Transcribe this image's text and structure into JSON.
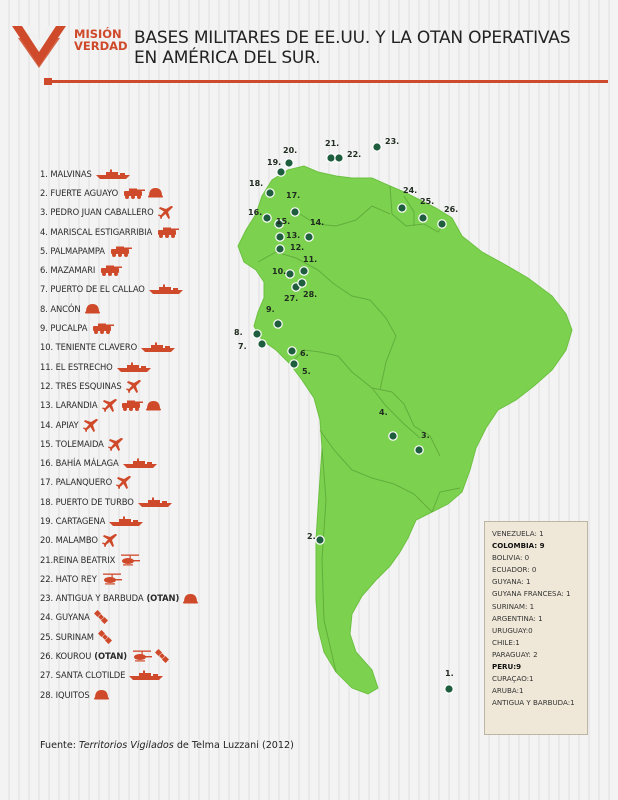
{
  "brand": {
    "line1": "MISIÓN",
    "line2": "VERDAD"
  },
  "title": {
    "line1": "BASES MILITARES DE EE.UU. Y LA OTAN OPERATIVAS",
    "line2": "EN AMÉRICA DEL SUR."
  },
  "colors": {
    "accent": "#cf4a2a",
    "land": "#7cd24f",
    "borders": "#5faa3a",
    "marker": "#1e5e3e",
    "panel": "#efe8d8"
  },
  "legend": [
    {
      "text": "1. MALVINAS",
      "icons": [
        "ship-icon"
      ]
    },
    {
      "text": "2. FUERTE AGUAYO",
      "icons": [
        "armored-vehicle-icon",
        "helmet-icon"
      ]
    },
    {
      "text": "3. PEDRO JUAN CABALLERO",
      "icons": [
        "plane-icon"
      ]
    },
    {
      "text": "4. MARISCAL ESTIGARRIBIA",
      "icons": [
        "armored-vehicle-icon"
      ]
    },
    {
      "text": "5. PALMAPAMPA",
      "icons": [
        "armored-vehicle-icon"
      ]
    },
    {
      "text": "6. MAZAMARI",
      "icons": [
        "armored-vehicle-icon"
      ]
    },
    {
      "text": "7. PUERTO DE EL CALLAO",
      "icons": [
        "ship-icon"
      ]
    },
    {
      "text": "8. ANCÓN",
      "icons": [
        "helmet-icon"
      ]
    },
    {
      "text": "9. PUCALPA",
      "icons": [
        "armored-vehicle-icon"
      ]
    },
    {
      "text": "10. TENIENTE CLAVERO",
      "icons": [
        "ship-icon"
      ]
    },
    {
      "text": "11. EL ESTRECHO",
      "icons": [
        "ship-icon"
      ]
    },
    {
      "text": "12. TRES ESQUINAS",
      "icons": [
        "plane-icon"
      ]
    },
    {
      "text": "13. LARANDIA",
      "icons": [
        "plane-icon",
        "armored-vehicle-icon",
        "helmet-icon"
      ]
    },
    {
      "text": "14. APIAY",
      "icons": [
        "plane-icon"
      ]
    },
    {
      "text": "15. TOLEMAIDA",
      "icons": [
        "plane-icon"
      ]
    },
    {
      "text": "16. BAHÍA MÁLAGA",
      "icons": [
        "ship-icon"
      ]
    },
    {
      "text": "17. PALANQUERO",
      "icons": [
        "plane-icon"
      ]
    },
    {
      "text": "18. PUERTO DE TURBO",
      "icons": [
        "ship-icon"
      ]
    },
    {
      "text": "19. CARTAGENA",
      "icons": [
        "ship-icon"
      ]
    },
    {
      "text": "20. MALAMBO",
      "icons": [
        "plane-icon"
      ]
    },
    {
      "text": "21.REINA BEATRIX",
      "icons": [
        "helicopter-icon"
      ]
    },
    {
      "text": "22. HATO REY",
      "icons": [
        "helicopter-icon"
      ]
    },
    {
      "text": "23. ANTIGUA Y BARBUDA",
      "otan": "(OTAN)",
      "icons": [
        "helmet-icon"
      ]
    },
    {
      "text": "24. GUYANA",
      "icons": [
        "satellite-icon"
      ]
    },
    {
      "text": "25. SURINAM",
      "icons": [
        "satellite-icon"
      ]
    },
    {
      "text": "26. KOUROU",
      "otan": "(OTAN)",
      "icons": [
        "helicopter-icon",
        "satellite-icon"
      ]
    },
    {
      "text": "27. SANTA CLOTILDE",
      "icons": [
        "ship-icon"
      ]
    },
    {
      "text": "28. IQUITOS",
      "icons": [
        "helmet-icon"
      ]
    }
  ],
  "map_labels": [
    "1.",
    "2.",
    "3.",
    "4.",
    "5.",
    "6.",
    "7.",
    "8.",
    "9.",
    "10.",
    "11.",
    "12.",
    "13.",
    "14.",
    "15.",
    "16.",
    "17.",
    "18.",
    "19.",
    "20.",
    "21.",
    "22.",
    "23.",
    "24.",
    "25.",
    "26.",
    "27.",
    "28."
  ],
  "stats": [
    {
      "text": "VENEZUELA:  1",
      "bold": false
    },
    {
      "text": "COLOMBIA: 9",
      "bold": true
    },
    {
      "text": "BOLIVIA: 0",
      "bold": false
    },
    {
      "text": "ECUADOR: 0",
      "bold": false
    },
    {
      "text": "GUYANA: 1",
      "bold": false
    },
    {
      "text": "GUYANA FRANCESA: 1",
      "bold": false
    },
    {
      "text": "SURINAM: 1",
      "bold": false
    },
    {
      "text": "ARGENTINA: 1",
      "bold": false
    },
    {
      "text": "URUGUAY:0",
      "bold": false
    },
    {
      "text": "CHILE:1",
      "bold": false
    },
    {
      "text": "PARAGUAY: 2",
      "bold": false
    },
    {
      "text": "PERU:9",
      "bold": true
    },
    {
      "text": "CURAÇAO:1",
      "bold": false
    },
    {
      "text": "ARUBA:1",
      "bold": false
    },
    {
      "text": "ANTIGUA Y BARBUDA:1",
      "bold": false
    }
  ],
  "source": {
    "prefix": "Fuente: ",
    "work": "Territorios Vigilados",
    "suffix": " de Telma Luzzani (2012)"
  }
}
